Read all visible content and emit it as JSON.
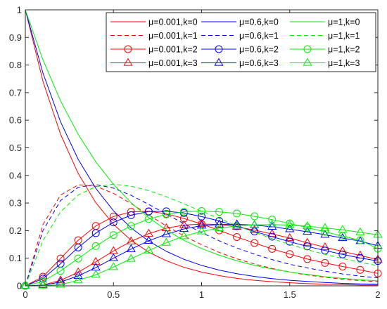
{
  "chart_data": {
    "type": "line",
    "title": "",
    "xlabel": "",
    "ylabel": "",
    "xlim": [
      0,
      2
    ],
    "ylim": [
      0,
      1
    ],
    "grid": false,
    "legend_placement": "top-right",
    "x_ticks": [
      {
        "value": 0,
        "label": "0"
      },
      {
        "value": 0.5,
        "label": "0.5"
      },
      {
        "value": 1,
        "label": "1"
      },
      {
        "value": 1.5,
        "label": "1.5"
      },
      {
        "value": 2,
        "label": "2"
      }
    ],
    "y_ticks": [
      {
        "value": 0,
        "label": "0"
      },
      {
        "value": 0.1,
        "label": "0.1"
      },
      {
        "value": 0.2,
        "label": "0.2"
      },
      {
        "value": 0.3,
        "label": "0.3"
      },
      {
        "value": 0.4,
        "label": "0.4"
      },
      {
        "value": 0.5,
        "label": "0.5"
      },
      {
        "value": 0.6,
        "label": "0.6"
      },
      {
        "value": 0.7,
        "label": "0.7"
      },
      {
        "value": 0.8,
        "label": "0.8"
      },
      {
        "value": 0.9,
        "label": "0.9"
      },
      {
        "value": 1,
        "label": "1"
      }
    ],
    "x": [
      0,
      0.1,
      0.2,
      0.3,
      0.4,
      0.5,
      0.6,
      0.7,
      0.8,
      0.9,
      1.0,
      1.1,
      1.2,
      1.3,
      1.4,
      1.5,
      1.6,
      1.7,
      1.8,
      1.9,
      2.0
    ],
    "colors": {
      "mu_0.001": "#ff0000",
      "mu_0.6": "#0000ff",
      "mu_1": "#00ee00"
    },
    "series": [
      {
        "name": "μ=0.001,k=0",
        "color": "#ff0000",
        "line": "solid",
        "marker": "none",
        "values": [
          1.0,
          0.741,
          0.549,
          0.407,
          0.301,
          0.223,
          0.165,
          0.122,
          0.091,
          0.067,
          0.05,
          0.037,
          0.027,
          0.02,
          0.015,
          0.011,
          0.008,
          0.006,
          0.004,
          0.003,
          0.003
        ]
      },
      {
        "name": "μ=0.001,k=1",
        "color": "#ff0000",
        "line": "dashed",
        "marker": "none",
        "values": [
          0.0,
          0.222,
          0.329,
          0.366,
          0.361,
          0.335,
          0.298,
          0.257,
          0.217,
          0.181,
          0.149,
          0.121,
          0.098,
          0.079,
          0.063,
          0.05,
          0.039,
          0.031,
          0.024,
          0.019,
          0.015
        ]
      },
      {
        "name": "μ=0.001,k=2",
        "color": "#ff0000",
        "line": "solid",
        "marker": "circle",
        "values": [
          0.0,
          0.033,
          0.099,
          0.165,
          0.217,
          0.251,
          0.268,
          0.27,
          0.261,
          0.244,
          0.224,
          0.201,
          0.177,
          0.155,
          0.134,
          0.115,
          0.097,
          0.083,
          0.07,
          0.058,
          0.045
        ]
      },
      {
        "name": "μ=0.001,k=3",
        "color": "#ff0000",
        "line": "solid",
        "marker": "triangle",
        "values": [
          0.0,
          0.003,
          0.02,
          0.049,
          0.087,
          0.126,
          0.161,
          0.189,
          0.209,
          0.22,
          0.224,
          0.222,
          0.214,
          0.202,
          0.188,
          0.173,
          0.156,
          0.14,
          0.125,
          0.11,
          0.095
        ]
      },
      {
        "name": "μ=0.6,k=0",
        "color": "#0000ff",
        "line": "solid",
        "marker": "none",
        "values": [
          1.0,
          0.771,
          0.594,
          0.458,
          0.353,
          0.272,
          0.21,
          0.162,
          0.125,
          0.096,
          0.074,
          0.057,
          0.044,
          0.034,
          0.026,
          0.02,
          0.016,
          0.012,
          0.009,
          0.007,
          0.006
        ]
      },
      {
        "name": "μ=0.6,k=1",
        "color": "#0000ff",
        "line": "dashed",
        "marker": "none",
        "values": [
          0.0,
          0.2,
          0.309,
          0.357,
          0.367,
          0.354,
          0.328,
          0.295,
          0.26,
          0.225,
          0.193,
          0.163,
          0.137,
          0.115,
          0.095,
          0.078,
          0.065,
          0.053,
          0.043,
          0.035,
          0.029
        ]
      },
      {
        "name": "μ=0.6,k=2",
        "color": "#0000ff",
        "line": "solid",
        "marker": "circle",
        "values": [
          0.0,
          0.026,
          0.08,
          0.139,
          0.191,
          0.23,
          0.256,
          0.269,
          0.27,
          0.264,
          0.251,
          0.235,
          0.216,
          0.197,
          0.178,
          0.16,
          0.143,
          0.128,
          0.114,
          0.101,
          0.09
        ]
      },
      {
        "name": "μ=0.6,k=3",
        "color": "#0000ff",
        "line": "solid",
        "marker": "triangle",
        "values": [
          0.0,
          0.002,
          0.014,
          0.036,
          0.066,
          0.1,
          0.133,
          0.163,
          0.187,
          0.206,
          0.218,
          0.222,
          0.223,
          0.22,
          0.214,
          0.205,
          0.196,
          0.185,
          0.173,
          0.162,
          0.145
        ]
      },
      {
        "name": "μ=1,k=0",
        "color": "#00ee00",
        "line": "solid",
        "marker": "none",
        "values": [
          1.0,
          0.819,
          0.67,
          0.549,
          0.449,
          0.368,
          0.301,
          0.247,
          0.202,
          0.165,
          0.135,
          0.111,
          0.091,
          0.074,
          0.061,
          0.05,
          0.041,
          0.033,
          0.027,
          0.022,
          0.018
        ]
      },
      {
        "name": "μ=1,k=1",
        "color": "#00ee00",
        "line": "dashed",
        "marker": "none",
        "values": [
          0.0,
          0.164,
          0.268,
          0.329,
          0.359,
          0.368,
          0.361,
          0.345,
          0.323,
          0.297,
          0.27,
          0.244,
          0.218,
          0.194,
          0.171,
          0.15,
          0.131,
          0.114,
          0.099,
          0.085,
          0.073
        ]
      },
      {
        "name": "μ=1,k=2",
        "color": "#00ee00",
        "line": "solid",
        "marker": "circle",
        "values": [
          0.0,
          0.016,
          0.054,
          0.099,
          0.144,
          0.184,
          0.217,
          0.242,
          0.259,
          0.268,
          0.271,
          0.268,
          0.262,
          0.252,
          0.24,
          0.226,
          0.211,
          0.196,
          0.18,
          0.165,
          0.135
        ]
      },
      {
        "name": "μ=1,k=3",
        "color": "#00ee00",
        "line": "solid",
        "marker": "triangle",
        "values": [
          0.0,
          0.001,
          0.004,
          0.02,
          0.04,
          0.068,
          0.098,
          0.128,
          0.156,
          0.18,
          0.197,
          0.209,
          0.217,
          0.221,
          0.222,
          0.22,
          0.216,
          0.21,
          0.203,
          0.194,
          0.185
        ]
      }
    ]
  }
}
